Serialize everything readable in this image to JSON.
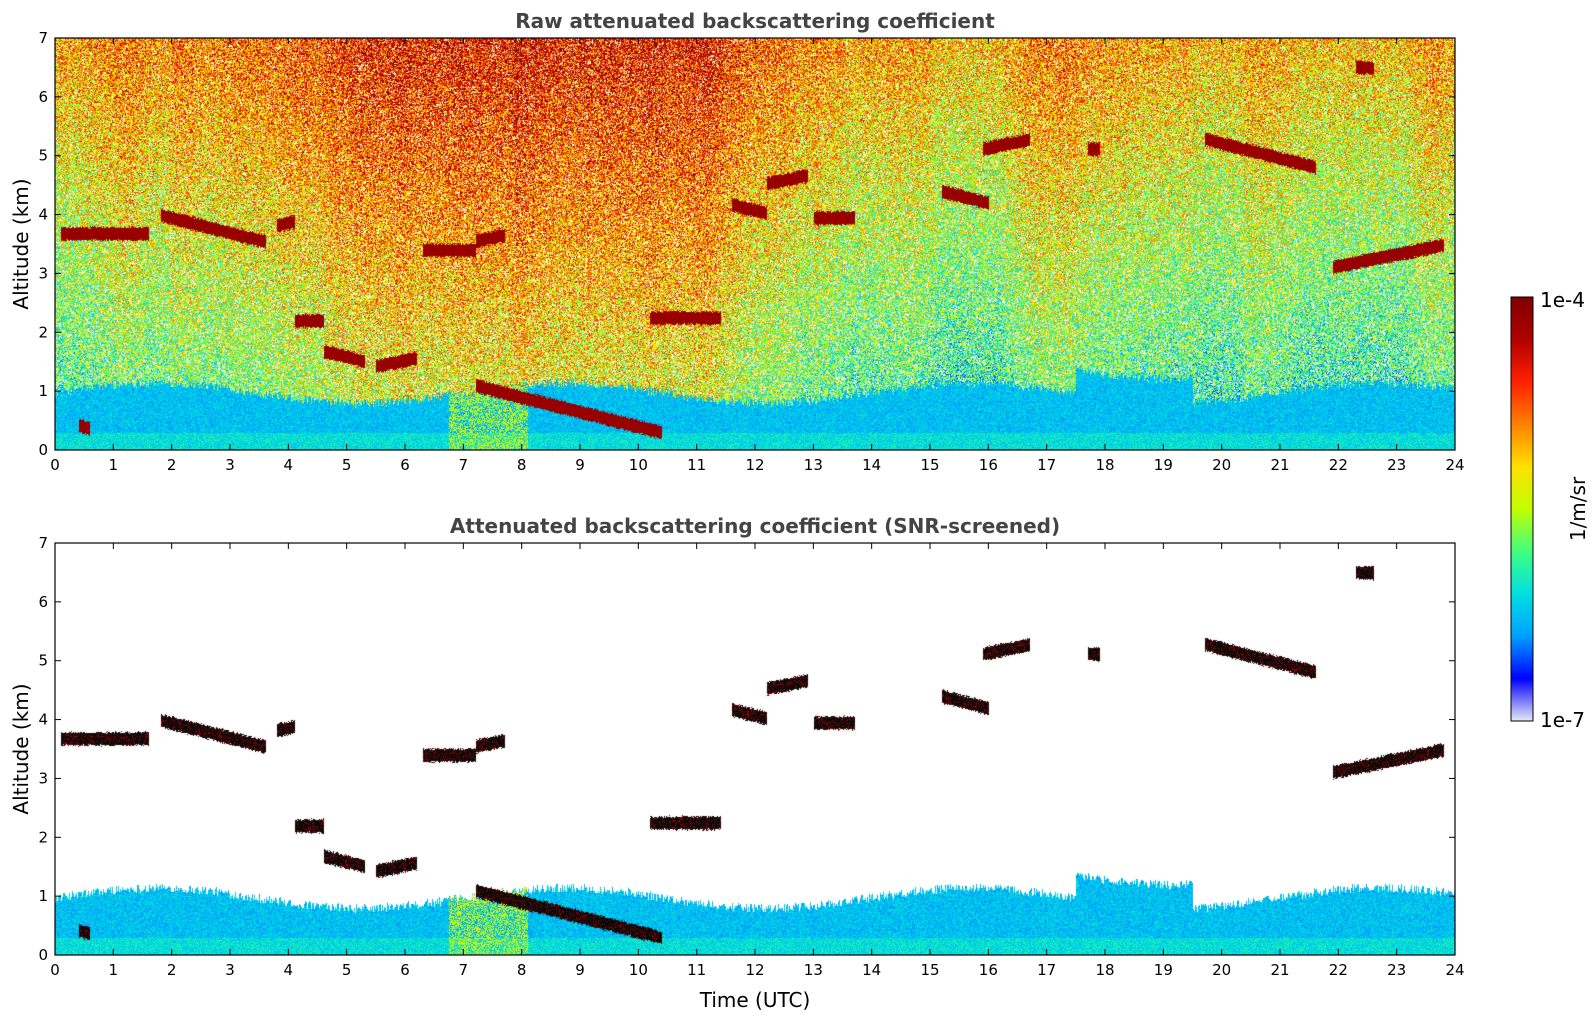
{
  "chart_data": [
    {
      "type": "heatmap",
      "title": "Raw attenuated backscattering coefficient",
      "xlabel": "",
      "ylabel": "Altitude (km)",
      "xlim": [
        0,
        24
      ],
      "ylim": [
        0,
        7
      ],
      "x_ticks": [
        "0",
        "1",
        "2",
        "3",
        "4",
        "5",
        "6",
        "7",
        "8",
        "9",
        "10",
        "11",
        "12",
        "13",
        "14",
        "15",
        "16",
        "17",
        "18",
        "19",
        "20",
        "21",
        "22",
        "23",
        "24"
      ],
      "y_ticks": [
        "0",
        "1",
        "2",
        "3",
        "4",
        "5",
        "6",
        "7"
      ],
      "screened": false,
      "cloud_layers": [
        {
          "t0": 0.1,
          "t1": 1.6,
          "h": 3.68
        },
        {
          "t0": 1.8,
          "t1": 3.6,
          "h": 3.77
        },
        {
          "t0": 3.8,
          "t1": 4.1,
          "h": 3.85
        },
        {
          "t0": 4.1,
          "t1": 4.6,
          "h": 2.2
        },
        {
          "t0": 4.6,
          "t1": 5.3,
          "h": 1.6
        },
        {
          "t0": 5.5,
          "t1": 6.2,
          "h": 1.5
        },
        {
          "t0": 6.3,
          "t1": 7.2,
          "h": 3.4
        },
        {
          "t0": 7.2,
          "t1": 10.4,
          "h": 0.7
        },
        {
          "t0": 7.2,
          "t1": 7.7,
          "h": 3.6
        },
        {
          "t0": 10.2,
          "t1": 11.4,
          "h": 2.25
        },
        {
          "t0": 11.6,
          "t1": 12.2,
          "h": 4.1
        },
        {
          "t0": 12.2,
          "t1": 12.9,
          "h": 4.6
        },
        {
          "t0": 13.0,
          "t1": 13.7,
          "h": 3.95
        },
        {
          "t0": 15.2,
          "t1": 16.0,
          "h": 4.3
        },
        {
          "t0": 15.9,
          "t1": 16.7,
          "h": 5.2
        },
        {
          "t0": 17.7,
          "t1": 17.9,
          "h": 5.12
        },
        {
          "t0": 19.7,
          "t1": 21.6,
          "h": 5.05
        },
        {
          "t0": 21.9,
          "t1": 23.8,
          "h": 3.3
        },
        {
          "t0": 22.3,
          "t1": 22.6,
          "h": 6.5
        },
        {
          "t0": 0.4,
          "t1": 0.6,
          "h": 0.4
        }
      ]
    },
    {
      "type": "heatmap",
      "title": "Attenuated backscattering coefficient (SNR-screened)",
      "xlabel": "Time (UTC)",
      "ylabel": "Altitude (km)",
      "xlim": [
        0,
        24
      ],
      "ylim": [
        0,
        7
      ],
      "x_ticks": [
        "0",
        "1",
        "2",
        "3",
        "4",
        "5",
        "6",
        "7",
        "8",
        "9",
        "10",
        "11",
        "12",
        "13",
        "14",
        "15",
        "16",
        "17",
        "18",
        "19",
        "20",
        "21",
        "22",
        "23",
        "24"
      ],
      "y_ticks": [
        "0",
        "1",
        "2",
        "3",
        "4",
        "5",
        "6",
        "7"
      ],
      "screened": true
    }
  ],
  "colorbar": {
    "label": "1/m/sr",
    "max_label": "1e-4",
    "min_label": "1e-7",
    "scale": "log",
    "range": [
      1e-07,
      0.0001
    ],
    "colormap": [
      "#e8e8f8",
      "#0000ff",
      "#00a0ff",
      "#00e0e0",
      "#40ff80",
      "#c0ff00",
      "#ffe000",
      "#ff8000",
      "#ff2000",
      "#b00000",
      "#800000"
    ]
  }
}
